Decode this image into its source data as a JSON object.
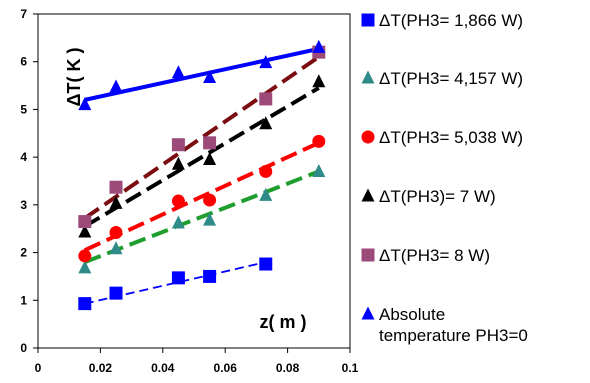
{
  "chart_data": {
    "type": "scatter",
    "xlabel": "z( m )",
    "ylabel": "ΔT( K )",
    "xlim": [
      0,
      0.1
    ],
    "ylim": [
      0,
      7
    ],
    "x_ticks": [
      "0",
      "0.02",
      "0.04",
      "0.06",
      "0.08",
      "0.1"
    ],
    "y_ticks": [
      "0",
      "1",
      "2",
      "3",
      "4",
      "5",
      "6",
      "7"
    ],
    "grid": false,
    "legend_position": "right",
    "series": [
      {
        "name": "ΔT(PH3= 1,866 W)",
        "marker": "square",
        "color": "#0000ff",
        "x": [
          0.015,
          0.025,
          0.045,
          0.055,
          0.073
        ],
        "y": [
          0.93,
          1.15,
          1.47,
          1.5,
          1.76
        ],
        "trend": [
          [
            0.015,
            0.93
          ],
          [
            0.073,
            1.8
          ]
        ],
        "trend_style": "dashed-thin",
        "trend_color": "#0000ff"
      },
      {
        "name": "ΔT(PH3= 4,157 W)",
        "marker": "triangle",
        "color": "#2e8b87",
        "x": [
          0.015,
          0.025,
          0.045,
          0.055,
          0.073,
          0.09
        ],
        "y": [
          1.68,
          2.08,
          2.62,
          2.68,
          3.2,
          3.7
        ],
        "trend": [
          [
            0.015,
            1.8
          ],
          [
            0.09,
            3.7
          ]
        ],
        "trend_style": "dashed",
        "trend_color": "#1e9e2e"
      },
      {
        "name": "ΔT(PH3= 5,038 W)",
        "marker": "circle",
        "color": "#ff0000",
        "x": [
          0.015,
          0.025,
          0.045,
          0.055,
          0.073,
          0.09
        ],
        "y": [
          1.93,
          2.42,
          3.08,
          3.1,
          3.7,
          4.33
        ],
        "trend": [
          [
            0.015,
            2.05
          ],
          [
            0.09,
            4.3
          ]
        ],
        "trend_style": "dashed",
        "trend_color": "#ff0000"
      },
      {
        "name": "ΔT(PH3)= 7 W)",
        "marker": "triangle",
        "color": "#000000",
        "x": [
          0.015,
          0.025,
          0.045,
          0.055,
          0.073,
          0.09
        ],
        "y": [
          2.43,
          3.03,
          3.85,
          3.95,
          4.7,
          5.58
        ],
        "trend": [
          [
            0.015,
            2.55
          ],
          [
            0.09,
            5.45
          ]
        ],
        "trend_style": "dashed",
        "trend_color": "#000000"
      },
      {
        "name": "ΔT(PH3= 8 W)",
        "marker": "square",
        "color": "#9c4a7a",
        "x": [
          0.015,
          0.025,
          0.045,
          0.055,
          0.073,
          0.09
        ],
        "y": [
          2.65,
          3.37,
          4.26,
          4.3,
          5.22,
          6.2
        ],
        "trend": [
          [
            0.015,
            2.72
          ],
          [
            0.09,
            6.1
          ]
        ],
        "trend_style": "dashed",
        "trend_color": "#7b0c10"
      },
      {
        "name": "Absolute temperature PH3=0",
        "marker": "triangle",
        "color": "#0000ff",
        "x": [
          0.015,
          0.025,
          0.045,
          0.055,
          0.073,
          0.09
        ],
        "y": [
          5.1,
          5.47,
          5.77,
          5.67,
          5.98,
          6.3
        ],
        "trend": [
          [
            0.015,
            5.2
          ],
          [
            0.09,
            6.27
          ]
        ],
        "trend_style": "solid",
        "trend_color": "#0000ff"
      }
    ]
  }
}
